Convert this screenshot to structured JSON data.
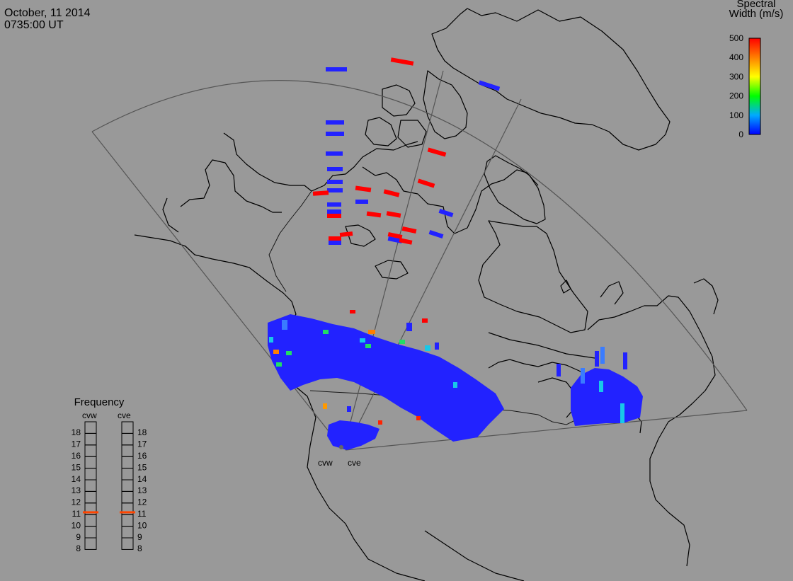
{
  "header": {
    "date": "October, 11 2014",
    "time": "0735:00 UT"
  },
  "colorbar": {
    "title_line1": "Spectral",
    "title_line2": "Width (m/s)",
    "ticks": [
      "500",
      "400",
      "300",
      "200",
      "100",
      "0"
    ],
    "colors": [
      "#ff0000",
      "#ff7f00",
      "#ffff00",
      "#00ff00",
      "#00ffff",
      "#0000ff"
    ]
  },
  "frequency": {
    "title": "Frequency",
    "radars": [
      "cvw",
      "cve"
    ],
    "levels": [
      "18",
      "17",
      "16",
      "15",
      "14",
      "13",
      "12",
      "11",
      "10",
      "9",
      "8"
    ],
    "active_mhz": [
      10.7,
      10.7
    ],
    "marker_color": "#ff4500"
  },
  "sites": [
    {
      "label": "cvw"
    },
    {
      "label": "cve"
    }
  ],
  "backscatter_color": "#2222ff"
}
